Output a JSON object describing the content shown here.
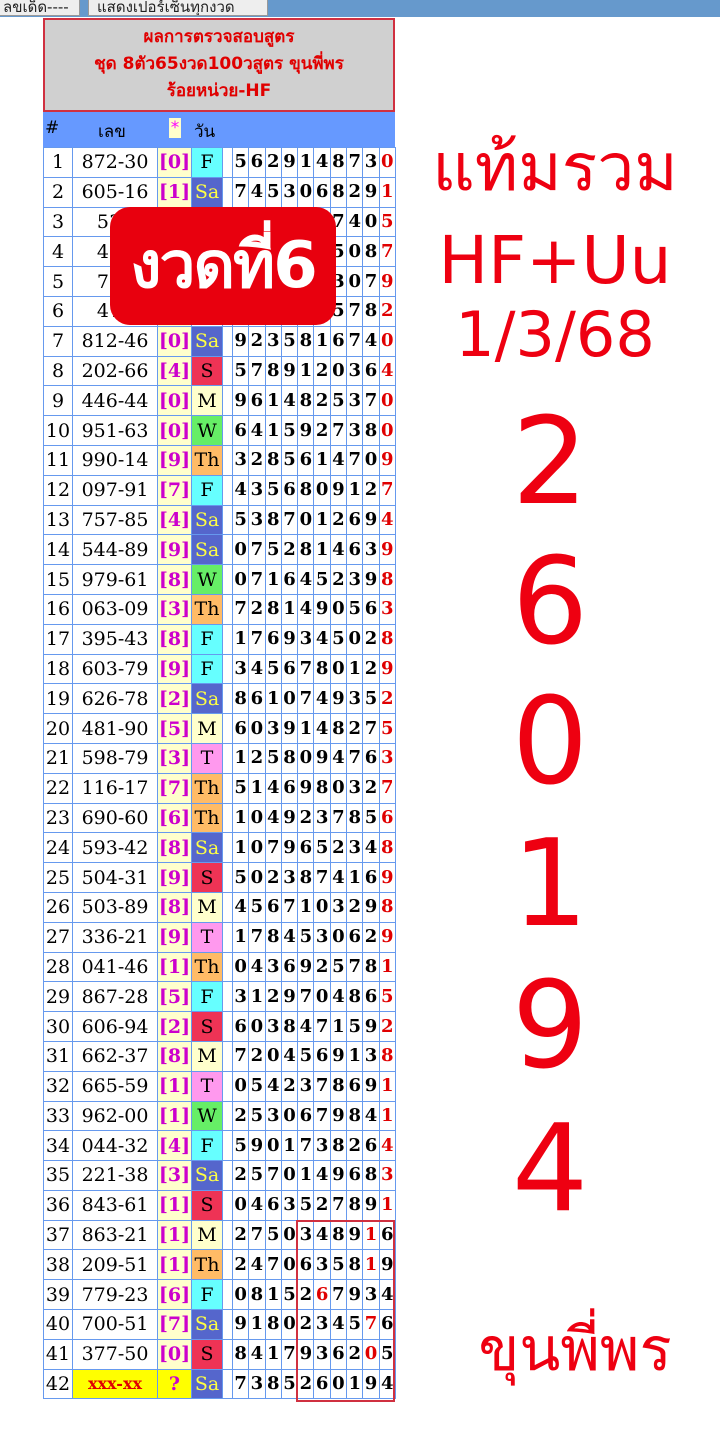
{
  "toolbar": {
    "button1": "ลขเด็ด----",
    "button2": "แสดงเปอร์เซ็นทุกงวด"
  },
  "header": {
    "line1": "ผลการตรวจสอบสูตร",
    "line2": "ชุด 8ตัว65งวด100วสูตร ขุนพี่พร",
    "line3": "ร้อยหน่วย-HF"
  },
  "columns": {
    "index": "#",
    "number": "เลข",
    "star": "*",
    "day": "วัน"
  },
  "day_colors": {
    "F": "#66ffff",
    "Sa": "#5566cc",
    "S": "#ee3355",
    "M": "#ffffcc",
    "W": "#66ee66",
    "Th": "#ffbb66",
    "T": "#ff99ee"
  },
  "rows": [
    {
      "i": "1",
      "n": "872-30",
      "b": "[0]",
      "d": "F",
      "g": "5629148730",
      "r": [
        9
      ]
    },
    {
      "i": "2",
      "n": "605-16",
      "b": "[1]",
      "d": "Sa",
      "g": "7453068291",
      "r": [
        9
      ]
    },
    {
      "i": "3",
      "n": "530",
      "b": "",
      "d": "",
      "g": "      7405",
      "r": [
        9
      ]
    },
    {
      "i": "4",
      "n": "453",
      "b": "",
      "d": "",
      "g": "      5087",
      "r": [
        9
      ]
    },
    {
      "i": "5",
      "n": "782",
      "b": "",
      "d": "",
      "g": "      3079",
      "r": [
        9
      ]
    },
    {
      "i": "6",
      "n": "478",
      "b": "",
      "d": "",
      "g": "      5782",
      "r": [
        9
      ]
    },
    {
      "i": "7",
      "n": "812-46",
      "b": "[0]",
      "d": "Sa",
      "g": "9235816740",
      "r": [
        9
      ]
    },
    {
      "i": "8",
      "n": "202-66",
      "b": "[4]",
      "d": "S",
      "g": "5789120364",
      "r": [
        9
      ]
    },
    {
      "i": "9",
      "n": "446-44",
      "b": "[0]",
      "d": "M",
      "g": "9614825370",
      "r": [
        9
      ]
    },
    {
      "i": "10",
      "n": "951-63",
      "b": "[0]",
      "d": "W",
      "g": "6415927380",
      "r": [
        9
      ]
    },
    {
      "i": "11",
      "n": "990-14",
      "b": "[9]",
      "d": "Th",
      "g": "3285614709",
      "r": [
        9
      ]
    },
    {
      "i": "12",
      "n": "097-91",
      "b": "[7]",
      "d": "F",
      "g": "4356809127",
      "r": [
        9
      ]
    },
    {
      "i": "13",
      "n": "757-85",
      "b": "[4]",
      "d": "Sa",
      "g": "5387012694",
      "r": [
        9
      ]
    },
    {
      "i": "14",
      "n": "544-89",
      "b": "[9]",
      "d": "Sa",
      "g": "0752814639",
      "r": [
        9
      ]
    },
    {
      "i": "15",
      "n": "979-61",
      "b": "[8]",
      "d": "W",
      "g": "0716452398",
      "r": [
        9
      ]
    },
    {
      "i": "16",
      "n": "063-09",
      "b": "[3]",
      "d": "Th",
      "g": "7281490563",
      "r": [
        9
      ]
    },
    {
      "i": "17",
      "n": "395-43",
      "b": "[8]",
      "d": "F",
      "g": "1769345028",
      "r": [
        9
      ]
    },
    {
      "i": "18",
      "n": "603-79",
      "b": "[9]",
      "d": "F",
      "g": "3456780129",
      "r": [
        9
      ]
    },
    {
      "i": "19",
      "n": "626-78",
      "b": "[2]",
      "d": "Sa",
      "g": "8610749352",
      "r": [
        9
      ]
    },
    {
      "i": "20",
      "n": "481-90",
      "b": "[5]",
      "d": "M",
      "g": "6039148275",
      "r": [
        9
      ]
    },
    {
      "i": "21",
      "n": "598-79",
      "b": "[3]",
      "d": "T",
      "g": "1258094763",
      "r": [
        9
      ]
    },
    {
      "i": "22",
      "n": "116-17",
      "b": "[7]",
      "d": "Th",
      "g": "5146980327",
      "r": [
        9
      ]
    },
    {
      "i": "23",
      "n": "690-60",
      "b": "[6]",
      "d": "Th",
      "g": "1049237856",
      "r": [
        9
      ]
    },
    {
      "i": "24",
      "n": "593-42",
      "b": "[8]",
      "d": "Sa",
      "g": "1079652348",
      "r": [
        9
      ]
    },
    {
      "i": "25",
      "n": "504-31",
      "b": "[9]",
      "d": "S",
      "g": "5023874169",
      "r": [
        9
      ]
    },
    {
      "i": "26",
      "n": "503-89",
      "b": "[8]",
      "d": "M",
      "g": "4567103298",
      "r": [
        9
      ]
    },
    {
      "i": "27",
      "n": "336-21",
      "b": "[9]",
      "d": "T",
      "g": "1784530629",
      "r": [
        9
      ]
    },
    {
      "i": "28",
      "n": "041-46",
      "b": "[1]",
      "d": "Th",
      "g": "0436925781",
      "r": [
        9
      ]
    },
    {
      "i": "29",
      "n": "867-28",
      "b": "[5]",
      "d": "F",
      "g": "3129704865",
      "r": [
        9
      ]
    },
    {
      "i": "30",
      "n": "606-94",
      "b": "[2]",
      "d": "S",
      "g": "6038471592",
      "r": [
        9
      ]
    },
    {
      "i": "31",
      "n": "662-37",
      "b": "[8]",
      "d": "M",
      "g": "7204569138",
      "r": [
        9
      ]
    },
    {
      "i": "32",
      "n": "665-59",
      "b": "[1]",
      "d": "T",
      "g": "0542378691",
      "r": [
        9
      ]
    },
    {
      "i": "33",
      "n": "962-00",
      "b": "[1]",
      "d": "W",
      "g": "2530679841",
      "r": [
        9
      ]
    },
    {
      "i": "34",
      "n": "044-32",
      "b": "[4]",
      "d": "F",
      "g": "5901738264",
      "r": [
        9
      ]
    },
    {
      "i": "35",
      "n": "221-38",
      "b": "[3]",
      "d": "Sa",
      "g": "2570149683",
      "r": [
        9
      ]
    },
    {
      "i": "36",
      "n": "843-61",
      "b": "[1]",
      "d": "S",
      "g": "0463527891",
      "r": [
        9
      ]
    },
    {
      "i": "37",
      "n": "863-21",
      "b": "[1]",
      "d": "M",
      "g": "2750348916",
      "r": [
        8
      ]
    },
    {
      "i": "38",
      "n": "209-51",
      "b": "[1]",
      "d": "Th",
      "g": "2470635819",
      "r": [
        8
      ]
    },
    {
      "i": "39",
      "n": "779-23",
      "b": "[6]",
      "d": "F",
      "g": "0815267934",
      "r": [
        5
      ]
    },
    {
      "i": "40",
      "n": "700-51",
      "b": "[7]",
      "d": "Sa",
      "g": "9180234576",
      "r": [
        8
      ]
    },
    {
      "i": "41",
      "n": "377-50",
      "b": "[0]",
      "d": "S",
      "g": "8417936205",
      "r": [
        8
      ]
    },
    {
      "i": "42",
      "n": "xxx-xx",
      "b": "?",
      "d": "Sa",
      "g": "7385260194",
      "r": []
    }
  ],
  "overlay": {
    "badge": "งวดที่6"
  },
  "side": {
    "line1": "แท้มรวม",
    "line2": "HF+Uu",
    "date": "1/3/68",
    "digits": [
      "2",
      "6",
      "0",
      "1",
      "9",
      "4"
    ],
    "signature": "ขุนพี่พร"
  }
}
